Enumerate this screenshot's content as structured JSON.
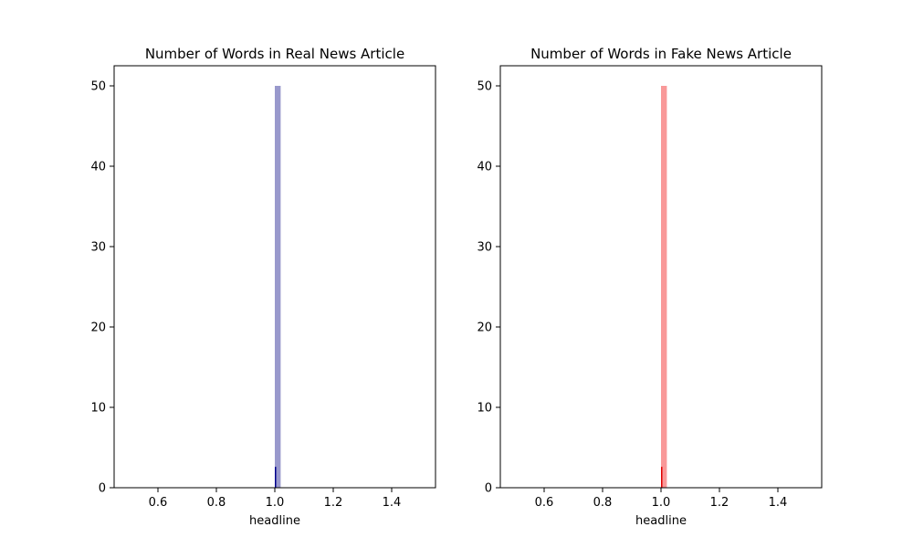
{
  "chart_data": [
    {
      "type": "bar",
      "title": "Number of Words in Real News Article",
      "xlabel": "headline",
      "ylabel": "",
      "xlim": [
        0.45,
        1.55
      ],
      "ylim": [
        0,
        52.5
      ],
      "xticks": [
        0.6,
        0.8,
        1.0,
        1.2,
        1.4
      ],
      "xtick_labels": [
        "0.6",
        "0.8",
        "1.0",
        "1.2",
        "1.4"
      ],
      "yticks": [
        0,
        10,
        20,
        30,
        40,
        50
      ],
      "ytick_labels": [
        "0",
        "10",
        "20",
        "30",
        "40",
        "50"
      ],
      "grid": false,
      "bars": [
        {
          "x_start": 1.0,
          "x_end": 1.02,
          "value": 50,
          "color": "#9999cc"
        },
        {
          "x_start": 1.0,
          "x_end": 1.004,
          "value": 2.6,
          "color": "#00008b"
        }
      ]
    },
    {
      "type": "bar",
      "title": "Number of Words in Fake News Article",
      "xlabel": "headline",
      "ylabel": "",
      "xlim": [
        0.45,
        1.55
      ],
      "ylim": [
        0,
        52.5
      ],
      "xticks": [
        0.6,
        0.8,
        1.0,
        1.2,
        1.4
      ],
      "xtick_labels": [
        "0.6",
        "0.8",
        "1.0",
        "1.2",
        "1.4"
      ],
      "yticks": [
        0,
        10,
        20,
        30,
        40,
        50
      ],
      "ytick_labels": [
        "0",
        "10",
        "20",
        "30",
        "40",
        "50"
      ],
      "grid": false,
      "bars": [
        {
          "x_start": 1.0,
          "x_end": 1.02,
          "value": 50,
          "color": "#f99999"
        },
        {
          "x_start": 1.0,
          "x_end": 1.004,
          "value": 2.6,
          "color": "#e00000"
        }
      ]
    }
  ]
}
